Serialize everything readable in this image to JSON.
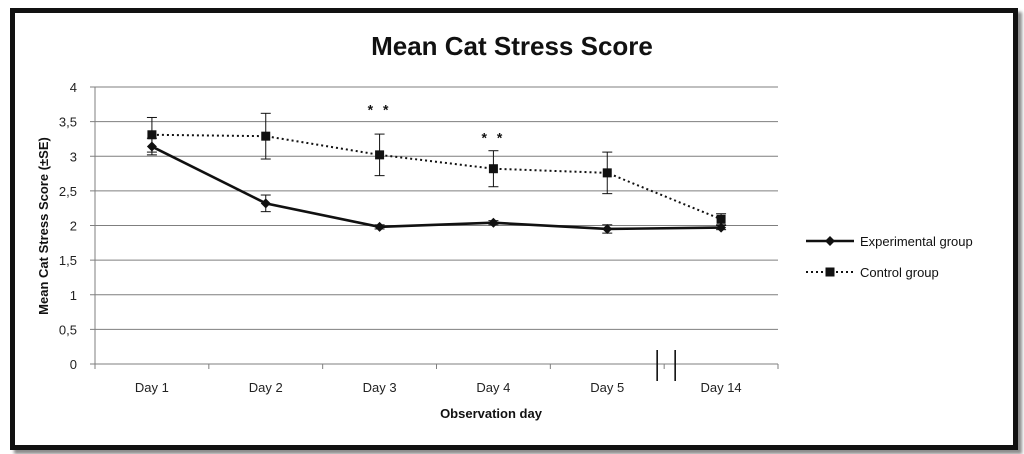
{
  "chart_data": {
    "type": "line",
    "title": "Mean Cat Stress Score",
    "xlabel": "Observation day",
    "ylabel": "Mean Cat Stress Score (±SE)",
    "categories": [
      "Day 1",
      "Day 2",
      "Day 3",
      "Day 4",
      "Day 5",
      "Day 14"
    ],
    "y_ticks": [
      "0",
      "0,5",
      "1",
      "1,5",
      "2",
      "2,5",
      "3",
      "3,5",
      "4"
    ],
    "ylim": [
      0,
      4
    ],
    "grid": true,
    "legend_position": "right",
    "axis_break": "between Day 5 and Day 14",
    "series": [
      {
        "name": "Experimental group",
        "marker": "diamond",
        "line_style": "solid",
        "values": [
          3.14,
          2.32,
          1.98,
          2.04,
          1.95,
          1.97
        ],
        "errors": [
          0.12,
          0.12,
          0.03,
          0.03,
          0.06,
          0.03
        ]
      },
      {
        "name": "Control group",
        "marker": "square",
        "line_style": "dotted",
        "values": [
          3.31,
          3.29,
          3.02,
          2.82,
          2.76,
          2.09
        ],
        "errors": [
          0.25,
          0.33,
          0.3,
          0.26,
          0.3,
          0.08
        ]
      }
    ],
    "annotations": [
      {
        "text": "* *",
        "category": "Day 3",
        "y": 3.6
      },
      {
        "text": "* *",
        "category": "Day 4",
        "y": 3.2
      }
    ]
  },
  "colors": {
    "line": "#111111",
    "grid": "#7f7f7f",
    "frame": "#111111"
  }
}
